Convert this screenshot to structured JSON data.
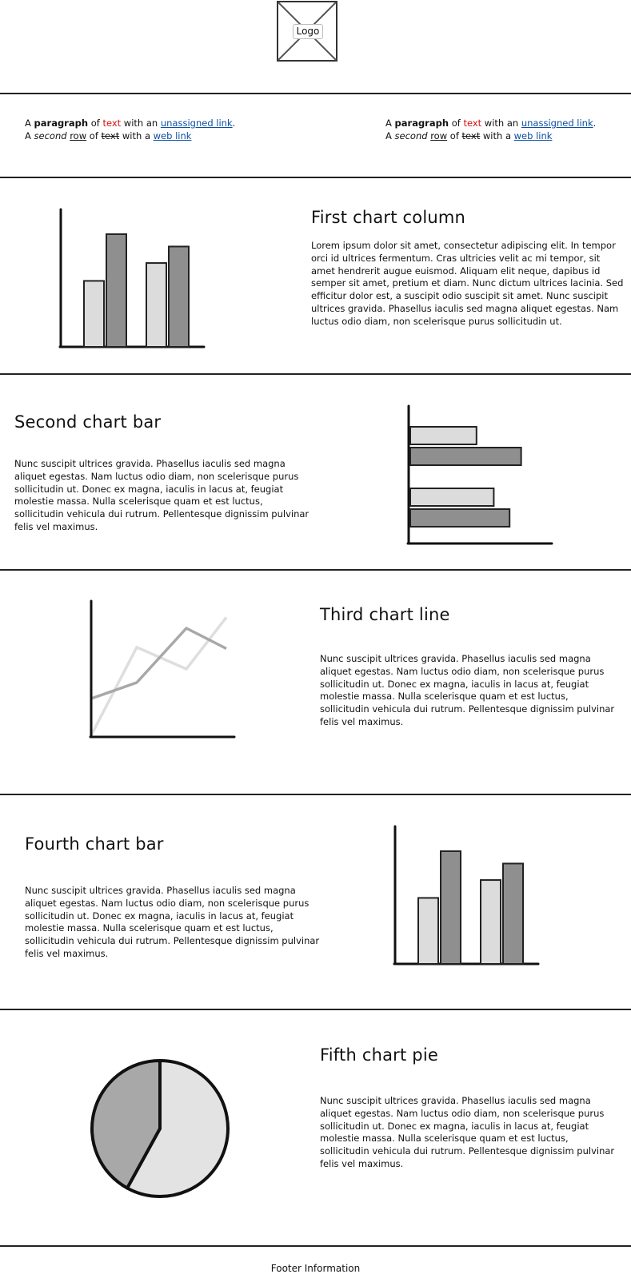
{
  "header": {
    "logo_label": "Logo"
  },
  "intro": {
    "line1": {
      "a": "A ",
      "bold": "paragraph",
      "of": " of ",
      "red": "text",
      "with_an": " with an ",
      "link": "unassigned link",
      "end": "."
    },
    "line2": {
      "a": "A ",
      "italic": "second",
      "sp": " ",
      "underline": "row",
      "of": " of ",
      "strike": "text",
      "with_a": " with a ",
      "link": "web link"
    }
  },
  "sections": [
    {
      "title": "First chart column",
      "text": "Lorem ipsum dolor sit amet, consectetur adipiscing elit. In tempor orci id ultrices fermentum. Cras ultricies velit ac mi tempor, sit amet hendrerit augue euismod. Aliquam elit neque, dapibus id semper sit amet, pretium et diam. Nunc dictum ultrices lacinia. Sed efficitur dolor est, a suscipit odio suscipit sit amet. Nunc suscipit ultrices gravida. Phasellus iaculis sed magna aliquet egestas. Nam luctus odio diam, non scelerisque purus sollicitudin ut."
    },
    {
      "title": "Second chart bar",
      "text": "Nunc suscipit ultrices gravida. Phasellus iaculis sed magna aliquet egestas. Nam luctus odio diam, non scelerisque purus sollicitudin ut. Donec ex magna, iaculis in lacus at, feugiat molestie massa. Nulla scelerisque quam et est luctus, sollicitudin vehicula dui rutrum. Pellentesque dignissim pulvinar felis vel maximus."
    },
    {
      "title": "Third chart line",
      "text": "Nunc suscipit ultrices gravida. Phasellus iaculis sed magna aliquet egestas. Nam luctus odio diam, non scelerisque purus sollicitudin ut. Donec ex magna, iaculis in lacus at, feugiat molestie massa. Nulla scelerisque quam et est luctus, sollicitudin vehicula dui rutrum. Pellentesque dignissim pulvinar felis vel maximus."
    },
    {
      "title": "Fourth chart bar",
      "text": "Nunc suscipit ultrices gravida. Phasellus iaculis sed magna aliquet egestas. Nam luctus odio diam, non scelerisque purus sollicitudin ut. Donec ex magna, iaculis in lacus at, feugiat molestie massa. Nulla scelerisque quam et est luctus, sollicitudin vehicula dui rutrum. Pellentesque dignissim pulvinar felis vel maximus."
    },
    {
      "title": "Fifth chart pie",
      "text": "Nunc suscipit ultrices gravida. Phasellus iaculis sed magna aliquet egestas. Nam luctus odio diam, non scelerisque purus sollicitudin ut. Donec ex magna, iaculis in lacus at, feugiat molestie massa. Nulla scelerisque quam et est luctus, sollicitudin vehicula dui rutrum. Pellentesque dignissim pulvinar felis vel maximus."
    }
  ],
  "chart_data": [
    {
      "type": "bar",
      "orientation": "vertical",
      "series": [
        {
          "values": [
            48,
            61
          ]
        },
        {
          "values": [
            82,
            73
          ]
        }
      ],
      "ylim": [
        0,
        100
      ],
      "colors": [
        "#dcdcdc",
        "#8f8f8f"
      ]
    },
    {
      "type": "bar",
      "orientation": "horizontal",
      "series": [
        {
          "values": [
            46,
            58
          ]
        },
        {
          "values": [
            77,
            69
          ]
        }
      ],
      "xlim": [
        0,
        100
      ],
      "colors": [
        "#dcdcdc",
        "#8f8f8f"
      ]
    },
    {
      "type": "line",
      "series": [
        {
          "values": [
            28,
            40,
            80,
            65
          ]
        },
        {
          "values": [
            0,
            66,
            50,
            88
          ]
        }
      ],
      "ylim": [
        0,
        100
      ],
      "colors": [
        "#a8a8a8",
        "#dedede"
      ]
    },
    {
      "type": "bar",
      "orientation": "vertical",
      "series": [
        {
          "values": [
            48,
            61
          ]
        },
        {
          "values": [
            82,
            73
          ]
        }
      ],
      "ylim": [
        0,
        100
      ],
      "colors": [
        "#dcdcdc",
        "#8f8f8f"
      ]
    },
    {
      "type": "pie",
      "values": [
        58,
        42
      ],
      "colors": [
        "#e3e3e3",
        "#a8a8a8"
      ]
    }
  ],
  "footer": {
    "text": "Footer Information"
  }
}
